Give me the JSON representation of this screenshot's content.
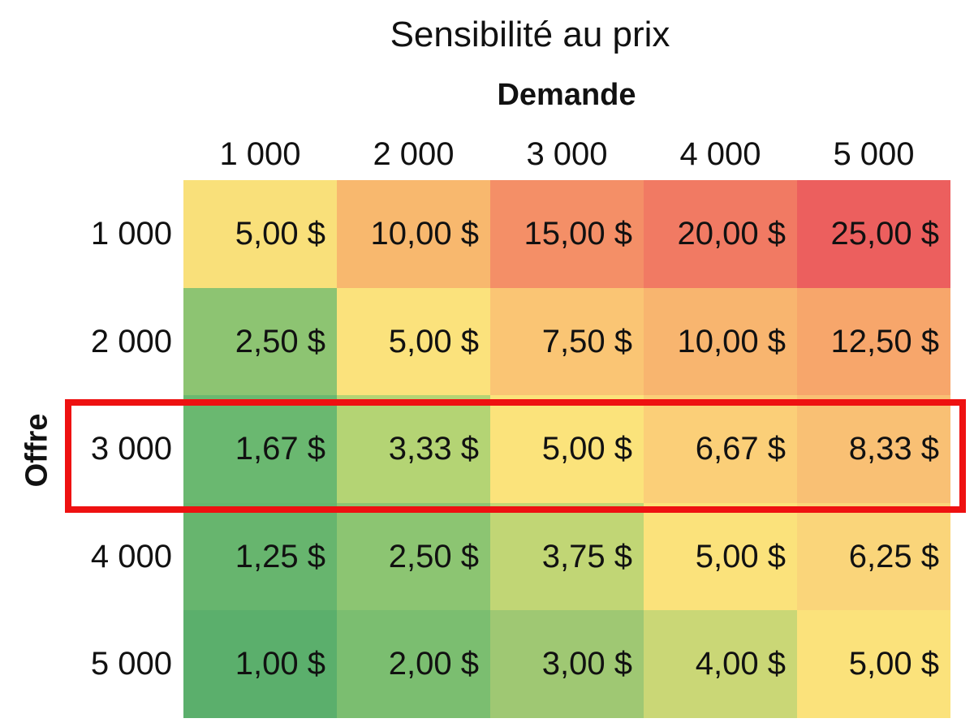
{
  "header": {
    "title": "Sensibilité au prix",
    "column_axis": "Demande",
    "row_axis": "Offre"
  },
  "table": {
    "columns": [
      "1 000",
      "2 000",
      "3 000",
      "4 000",
      "5 000"
    ],
    "row_labels": [
      "1 000",
      "2 000",
      "3 000",
      "4 000",
      "5 000"
    ],
    "rows": [
      [
        "5,00 $",
        "10,00 $",
        "15,00 $",
        "20,00 $",
        "25,00 $"
      ],
      [
        "2,50 $",
        "5,00 $",
        "7,50 $",
        "10,00 $",
        "12,50 $"
      ],
      [
        "1,67 $",
        "3,33 $",
        "5,00 $",
        "6,67 $",
        "8,33 $"
      ],
      [
        "1,25 $",
        "2,50 $",
        "3,75 $",
        "5,00 $",
        "6,25 $"
      ],
      [
        "1,00 $",
        "2,00 $",
        "3,00 $",
        "4,00 $",
        "5,00 $"
      ]
    ],
    "colors": [
      [
        "#f9e07a",
        "#f8b86e",
        "#f48f67",
        "#f17a63",
        "#ec5f5e"
      ],
      [
        "#8dc472",
        "#fbe27c",
        "#fac574",
        "#f8b56f",
        "#f7a66b"
      ],
      [
        "#6ab870",
        "#b4d474",
        "#fbe37b",
        "#fbcf78",
        "#f9c074"
      ],
      [
        "#67b56e",
        "#8cc572",
        "#c1d675",
        "#fbe27b",
        "#fad57a"
      ],
      [
        "#5baf6c",
        "#7bbe70",
        "#9fc873",
        "#cad776",
        "#fbe27b"
      ]
    ]
  }
}
